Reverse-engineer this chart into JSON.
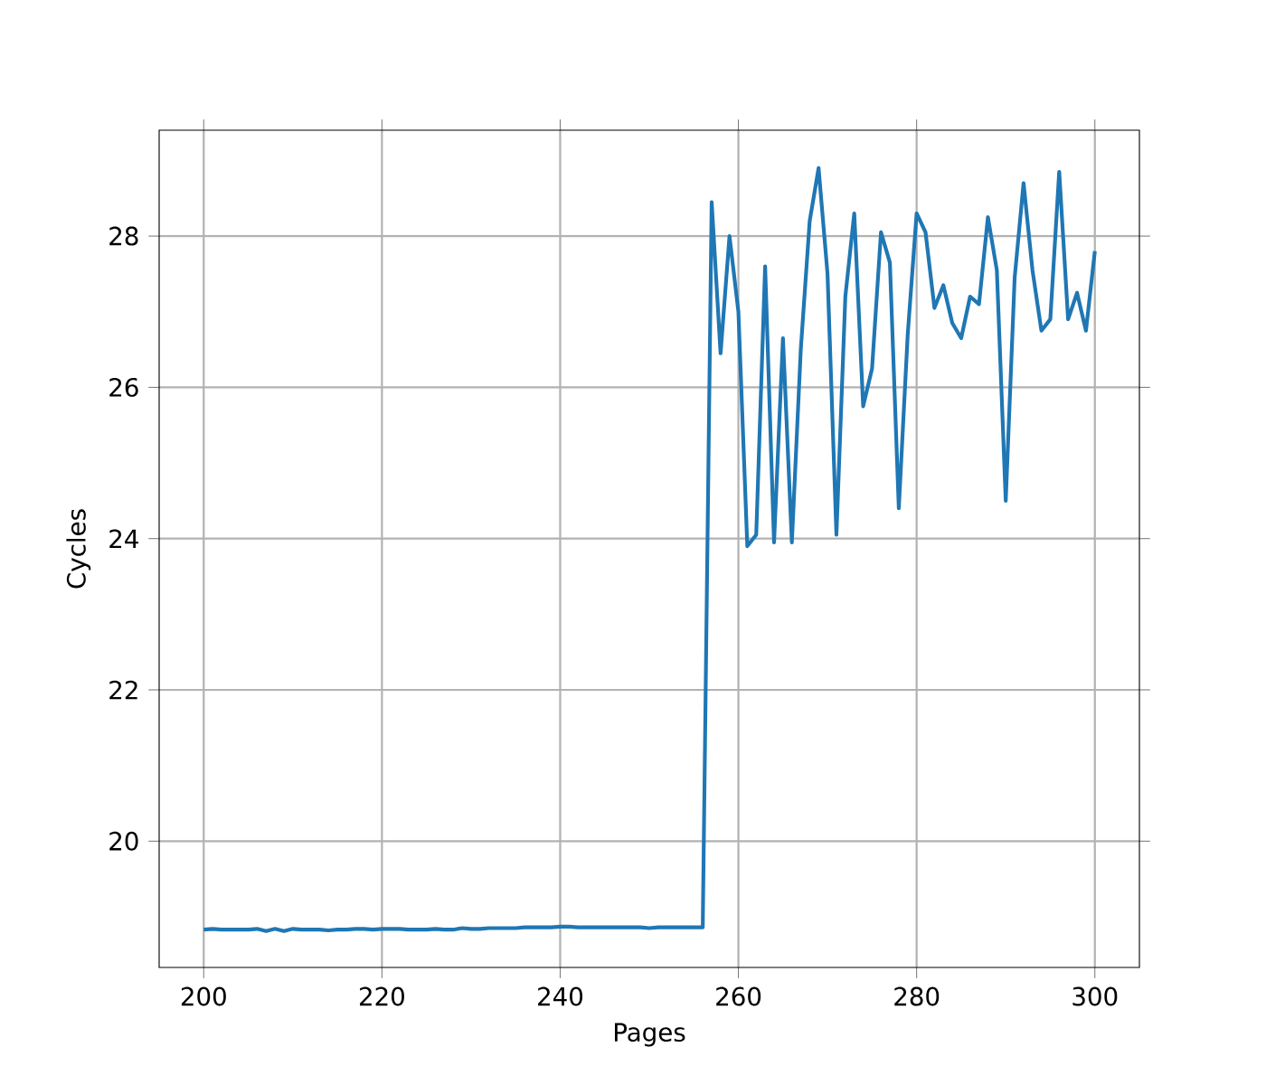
{
  "chart_data": {
    "type": "line",
    "xlabel": "Pages",
    "ylabel": "Cycles",
    "x": [
      200,
      201,
      202,
      203,
      204,
      205,
      206,
      207,
      208,
      209,
      210,
      211,
      212,
      213,
      214,
      215,
      216,
      217,
      218,
      219,
      220,
      221,
      222,
      223,
      224,
      225,
      226,
      227,
      228,
      229,
      230,
      231,
      232,
      233,
      234,
      235,
      236,
      237,
      238,
      239,
      240,
      241,
      242,
      243,
      244,
      245,
      246,
      247,
      248,
      249,
      250,
      251,
      252,
      253,
      254,
      255,
      256,
      257,
      258,
      259,
      260,
      261,
      262,
      263,
      264,
      265,
      266,
      267,
      268,
      269,
      270,
      271,
      272,
      273,
      274,
      275,
      276,
      277,
      278,
      279,
      280,
      281,
      282,
      283,
      284,
      285,
      286,
      287,
      288,
      289,
      290,
      291,
      292,
      293,
      294,
      295,
      296,
      297,
      298,
      299,
      300
    ],
    "series": [
      {
        "color": "#1f77b4",
        "values": [
          18.83,
          18.84,
          18.83,
          18.83,
          18.83,
          18.83,
          18.84,
          18.81,
          18.84,
          18.81,
          18.84,
          18.83,
          18.83,
          18.83,
          18.82,
          18.83,
          18.83,
          18.84,
          18.84,
          18.83,
          18.84,
          18.84,
          18.84,
          18.83,
          18.83,
          18.83,
          18.84,
          18.83,
          18.83,
          18.85,
          18.84,
          18.84,
          18.85,
          18.85,
          18.85,
          18.85,
          18.86,
          18.86,
          18.86,
          18.86,
          18.87,
          18.87,
          18.86,
          18.86,
          18.86,
          18.86,
          18.86,
          18.86,
          18.86,
          18.86,
          18.85,
          18.86,
          18.86,
          18.86,
          18.86,
          18.86,
          18.86,
          28.45,
          26.45,
          28.0,
          27.0,
          23.9,
          24.05,
          27.6,
          23.95,
          26.65,
          23.95,
          26.5,
          28.2,
          28.9,
          27.5,
          24.05,
          27.2,
          28.3,
          25.75,
          26.25,
          28.05,
          27.65,
          24.4,
          26.7,
          28.3,
          28.05,
          27.05,
          27.35,
          26.85,
          26.65,
          27.2,
          27.1,
          28.25,
          27.55,
          24.5,
          27.45,
          28.7,
          27.55,
          26.75,
          26.9,
          28.85,
          26.9,
          27.25,
          26.75,
          27.8
        ]
      }
    ],
    "xlim": [
      195,
      305
    ],
    "ylim": [
      18.33,
      29.4
    ],
    "xticks": [
      200,
      220,
      240,
      260,
      280,
      300
    ],
    "yticks": [
      20,
      22,
      24,
      26,
      28
    ],
    "grid": true,
    "marker": "none",
    "line_style": "solid"
  }
}
